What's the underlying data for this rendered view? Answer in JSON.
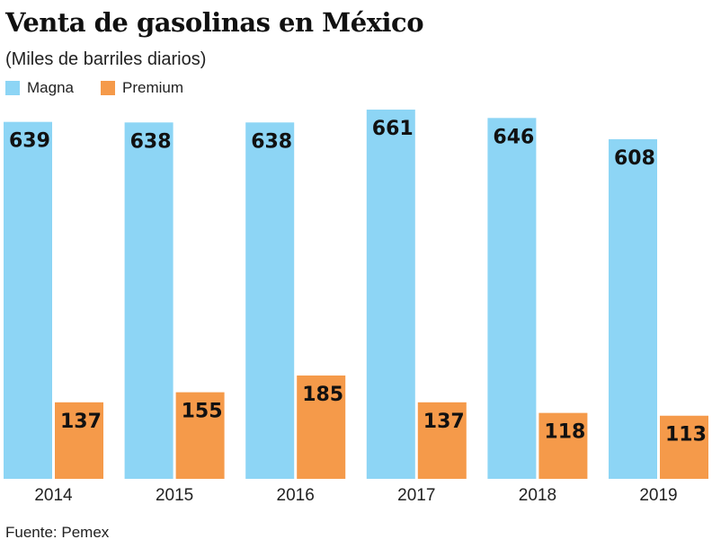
{
  "chart_data": {
    "type": "bar",
    "title": "Venta de gasolinas en México",
    "subtitle": "(Miles de barriles diarios)",
    "categories": [
      "2014",
      "2015",
      "2016",
      "2017",
      "2018",
      "2019"
    ],
    "series": [
      {
        "name": "Magna",
        "color": "#8dd5f5",
        "values": [
          639,
          638,
          638,
          661,
          646,
          608
        ]
      },
      {
        "name": "Premium",
        "color": "#f59a4a",
        "values": [
          137,
          155,
          185,
          137,
          118,
          113
        ]
      }
    ],
    "ylim": [
      0,
      661
    ],
    "grid": false,
    "legend": "top-left",
    "source": "Fuente: Pemex"
  }
}
